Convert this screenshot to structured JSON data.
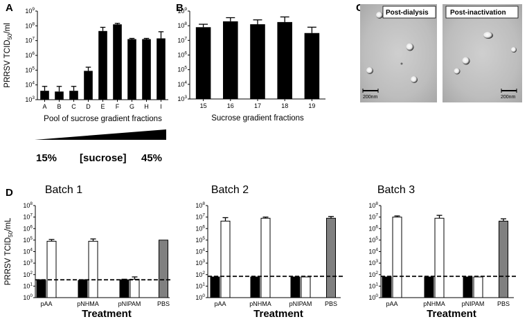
{
  "panels": {
    "A": "A",
    "B": "B",
    "C": "C",
    "D": "D"
  },
  "ylabel_A": "PRRSV TCID50/ml",
  "ylabel_D": "PRRSV TCID50/mL",
  "gradient": {
    "low": "15%",
    "mid": "[sucrose]",
    "high": "45%"
  },
  "micrographs": {
    "left_label": "Post-dialysis",
    "right_label": "Post-inactivation",
    "scale_left": "200nm",
    "scale_right": "200nm"
  },
  "chart_data": [
    {
      "id": "A",
      "type": "bar",
      "title": "",
      "xlabel": "Pool of sucrose gradient fractions",
      "ylabel": "PRRSV TCID50/ml",
      "yscale": "log10",
      "ylim_exp": [
        3,
        9
      ],
      "categories": [
        "A",
        "B",
        "C",
        "D",
        "E",
        "F",
        "G",
        "H",
        "I"
      ],
      "values_log10": [
        3.6,
        3.55,
        3.6,
        4.95,
        7.65,
        8.1,
        7.1,
        7.1,
        7.15
      ],
      "errors_log10": [
        0.3,
        0.35,
        0.3,
        0.25,
        0.25,
        0.07,
        0.05,
        0.05,
        0.45
      ],
      "color": "#000000"
    },
    {
      "id": "B",
      "type": "bar",
      "title": "",
      "xlabel": "Sucrose gradient fractions",
      "ylabel": "PRRSV TCID50/ml",
      "yscale": "log10",
      "ylim_exp": [
        3,
        9
      ],
      "categories": [
        "15",
        "16",
        "17",
        "18",
        "19"
      ],
      "values_log10": [
        7.9,
        8.3,
        8.1,
        8.25,
        7.5
      ],
      "errors_log10": [
        0.2,
        0.25,
        0.3,
        0.35,
        0.4
      ],
      "color": "#000000"
    },
    {
      "id": "D1",
      "type": "bar",
      "title": "Batch 1",
      "xlabel": "Treatment",
      "ylabel": "PRRSV TCID50/mL",
      "yscale": "log10",
      "ylim_exp": [
        0,
        8
      ],
      "categories": [
        "pAA",
        "pNHMA",
        "pNIPAM",
        "PBS"
      ],
      "series": [
        {
          "name": "black",
          "color": "#000000",
          "values_log10": [
            1.5,
            1.5,
            1.55,
            null
          ],
          "errors_log10": [
            0.05,
            0.05,
            0.05,
            null
          ]
        },
        {
          "name": "white",
          "color": "#ffffff",
          "values_log10": [
            4.9,
            4.9,
            1.6,
            null
          ],
          "errors_log10": [
            0.15,
            0.2,
            0.2,
            null
          ]
        },
        {
          "name": "gray",
          "color": "#808080",
          "values_log10": [
            null,
            null,
            null,
            5.0
          ],
          "errors_log10": [
            null,
            null,
            null,
            0
          ]
        }
      ],
      "detection_limit_log10": 1.55
    },
    {
      "id": "D2",
      "type": "bar",
      "title": "Batch 2",
      "xlabel": "Treatment",
      "ylabel": "",
      "yscale": "log10",
      "ylim_exp": [
        0,
        8
      ],
      "categories": [
        "pAA",
        "pNHMA",
        "pNIPAM",
        "PBS"
      ],
      "series": [
        {
          "name": "black",
          "color": "#000000",
          "values_log10": [
            1.8,
            1.8,
            1.8,
            null
          ],
          "errors_log10": [
            0,
            0,
            0,
            null
          ]
        },
        {
          "name": "white",
          "color": "#ffffff",
          "values_log10": [
            6.65,
            6.9,
            1.8,
            null
          ],
          "errors_log10": [
            0.3,
            0.1,
            0,
            null
          ]
        },
        {
          "name": "gray",
          "color": "#808080",
          "values_log10": [
            null,
            null,
            null,
            6.9
          ],
          "errors_log10": [
            null,
            null,
            null,
            0.15
          ]
        }
      ],
      "detection_limit_log10": 1.85
    },
    {
      "id": "D3",
      "type": "bar",
      "title": "Batch 3",
      "xlabel": "Treatment",
      "ylabel": "",
      "yscale": "log10",
      "ylim_exp": [
        0,
        8
      ],
      "categories": [
        "pAA",
        "pNHMA",
        "pNIPAM",
        "PBS"
      ],
      "series": [
        {
          "name": "black",
          "color": "#000000",
          "values_log10": [
            1.8,
            1.8,
            1.8,
            null
          ],
          "errors_log10": [
            0,
            0,
            0,
            null
          ]
        },
        {
          "name": "white",
          "color": "#ffffff",
          "values_log10": [
            7.0,
            6.9,
            1.8,
            null
          ],
          "errors_log10": [
            0.1,
            0.25,
            0,
            null
          ]
        },
        {
          "name": "gray",
          "color": "#808080",
          "values_log10": [
            null,
            null,
            null,
            6.65
          ],
          "errors_log10": [
            null,
            null,
            null,
            0.2
          ]
        }
      ],
      "detection_limit_log10": 1.85
    }
  ]
}
